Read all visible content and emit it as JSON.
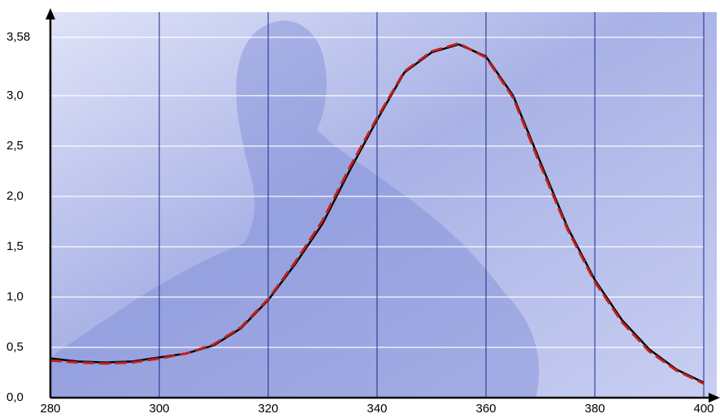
{
  "chart_data": {
    "type": "line",
    "x": [
      280,
      285,
      290,
      295,
      300,
      305,
      310,
      315,
      320,
      325,
      330,
      335,
      340,
      345,
      350,
      355,
      360,
      365,
      370,
      375,
      380,
      385,
      390,
      395,
      400
    ],
    "series": [
      {
        "color": "#000000",
        "dash": false,
        "values": [
          0.39,
          0.36,
          0.35,
          0.36,
          0.4,
          0.44,
          0.52,
          0.69,
          0.97,
          1.33,
          1.73,
          2.26,
          2.76,
          3.23,
          3.43,
          3.51,
          3.39,
          3.0,
          2.34,
          1.69,
          1.17,
          0.77,
          0.48,
          0.28,
          0.15
        ]
      },
      {
        "color": "#c0201a",
        "dash": true,
        "values": [
          0.37,
          0.35,
          0.34,
          0.35,
          0.39,
          0.44,
          0.53,
          0.7,
          0.98,
          1.35,
          1.76,
          2.29,
          2.78,
          3.24,
          3.44,
          3.52,
          3.38,
          2.98,
          2.31,
          1.67,
          1.15,
          0.75,
          0.46,
          0.27,
          0.14
        ]
      }
    ],
    "xlim": [
      280,
      400
    ],
    "xticks": [
      280,
      300,
      320,
      340,
      360,
      380,
      400
    ],
    "ylim": [
      0,
      3.83
    ],
    "yticks": [
      {
        "value": 0,
        "label": "0,0"
      },
      {
        "value": 0.5,
        "label": "0,5"
      },
      {
        "value": 1.0,
        "label": "1,0"
      },
      {
        "value": 1.5,
        "label": "1,5"
      },
      {
        "value": 2.0,
        "label": "2,0"
      },
      {
        "value": 2.5,
        "label": "2,5"
      },
      {
        "value": 3.0,
        "label": "3,0"
      },
      {
        "value": 3.58,
        "label": "3,58"
      }
    ],
    "grid": true
  }
}
